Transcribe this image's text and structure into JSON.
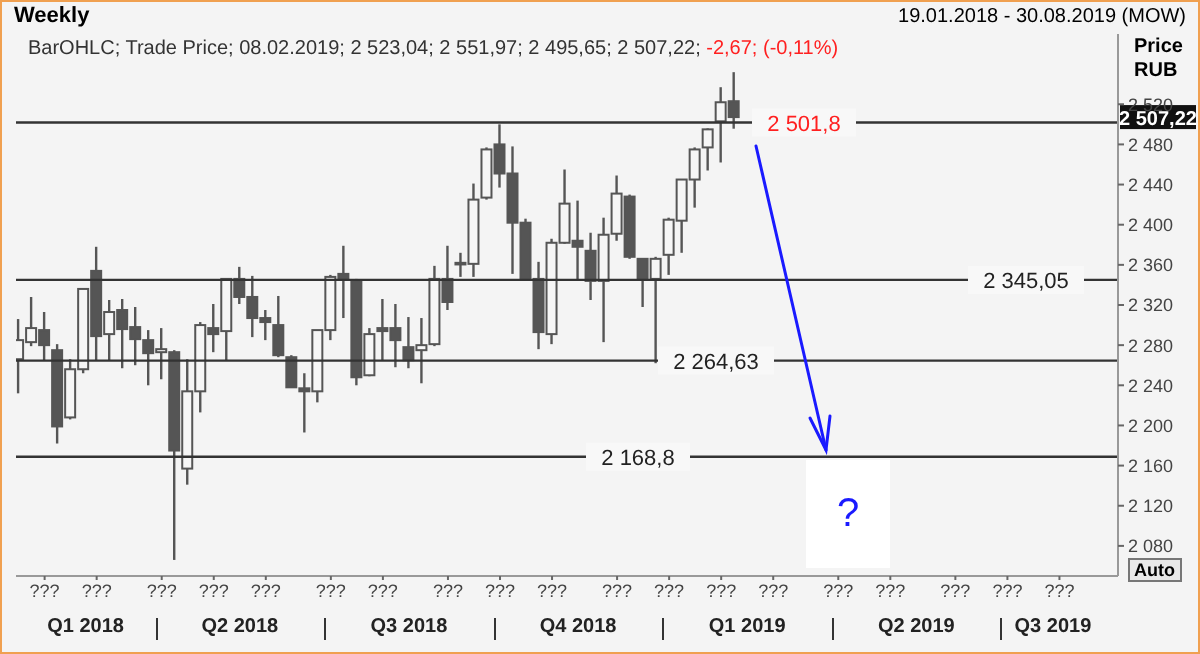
{
  "chart_data": {
    "type": "candlestick",
    "title": "Weekly",
    "subtitle": "19.01.2018 - 30.08.2019 (MOW)",
    "ylabel": "Price RUB",
    "annotations": [
      "BarOHLC; Trade Price; 08.02.2019; 2 523,04; 2 551,97; 2 495,65; 2 507,22;",
      "-2,67; (-0,11%)",
      "?",
      "Auto",
      {
        "text": "2 507,22",
        "y": 2507.22
      },
      "Q1 2018",
      "Q2 2018",
      "Q3 2018",
      "Q4 2018",
      "Q1 2019",
      "Q2 2019",
      "Q3 2019"
    ],
    "categories": [
      null,
      null,
      "???",
      null,
      null,
      null,
      "???",
      null,
      null,
      null,
      null,
      "???",
      null,
      null,
      null,
      "???",
      null,
      null,
      null,
      "???",
      null,
      null,
      null,
      null,
      "???",
      null,
      null,
      null,
      "???",
      null,
      null,
      null,
      null,
      "???",
      null,
      null,
      null,
      "???",
      null,
      null,
      null,
      "???",
      null,
      null,
      null,
      null,
      "???",
      null,
      null,
      null,
      "???",
      null,
      null,
      null,
      "???",
      null,
      null,
      null,
      "???",
      null,
      null,
      null,
      null,
      "???",
      null,
      null,
      null,
      "???",
      null,
      null,
      null,
      null,
      "???",
      null,
      null,
      null,
      "???",
      null,
      null,
      null,
      "???",
      null,
      null,
      null
    ],
    "ohlc": [
      [
        2266,
        2306,
        2232,
        2285
      ],
      [
        2283,
        2328,
        2279,
        2297
      ],
      [
        2295,
        2313,
        2265,
        2280
      ],
      [
        2275,
        2281,
        2182,
        2199
      ],
      [
        2208,
        2266,
        2206,
        2256
      ],
      [
        2256,
        2336,
        2252,
        2336
      ],
      [
        2354,
        2378,
        2265,
        2289
      ],
      [
        2291,
        2325,
        2265,
        2313
      ],
      [
        2315,
        2326,
        2257,
        2296
      ],
      [
        2298,
        2318,
        2260,
        2286
      ],
      [
        2285,
        2295,
        2240,
        2272
      ],
      [
        2273,
        2297,
        2246,
        2276
      ],
      [
        2273,
        2275,
        2066,
        2175
      ],
      [
        2157,
        2266,
        2141,
        2234
      ],
      [
        2234,
        2303,
        2213,
        2300
      ],
      [
        2297,
        2321,
        2273,
        2291
      ],
      [
        2294,
        2346,
        2265,
        2346
      ],
      [
        2346,
        2358,
        2321,
        2328
      ],
      [
        2328,
        2349,
        2288,
        2307
      ],
      [
        2307,
        2315,
        2285,
        2303
      ],
      [
        2300,
        2329,
        2268,
        2270
      ],
      [
        2268,
        2270,
        2238,
        2238
      ],
      [
        2237,
        2252,
        2193,
        2234
      ],
      [
        2234,
        2295,
        2223,
        2295
      ],
      [
        2295,
        2350,
        2285,
        2348
      ],
      [
        2351,
        2379,
        2307,
        2346
      ],
      [
        2344,
        2346,
        2240,
        2248
      ],
      [
        2250,
        2297,
        2249,
        2291
      ],
      [
        2297,
        2326,
        2265,
        2294
      ],
      [
        2297,
        2321,
        2258,
        2285
      ],
      [
        2278,
        2308,
        2257,
        2265
      ],
      [
        2275,
        2307,
        2242,
        2280
      ],
      [
        2281,
        2359,
        2279,
        2346
      ],
      [
        2346,
        2379,
        2315,
        2323
      ],
      [
        2361,
        2372,
        2348,
        2362
      ],
      [
        2361,
        2441,
        2348,
        2425
      ],
      [
        2427,
        2477,
        2425,
        2475
      ],
      [
        2480,
        2500,
        2437,
        2451
      ],
      [
        2451,
        2478,
        2351,
        2402
      ],
      [
        2402,
        2406,
        2344,
        2346
      ],
      [
        2346,
        2363,
        2276,
        2293
      ],
      [
        2291,
        2386,
        2281,
        2382
      ],
      [
        2382,
        2455,
        2381,
        2421
      ],
      [
        2384,
        2424,
        2344,
        2378
      ],
      [
        2374,
        2392,
        2325,
        2344
      ],
      [
        2344,
        2407,
        2283,
        2390
      ],
      [
        2391,
        2449,
        2384,
        2431
      ],
      [
        2428,
        2430,
        2366,
        2368
      ],
      [
        2366,
        2366,
        2318,
        2346
      ],
      [
        2346,
        2368,
        2262,
        2366
      ],
      [
        2370,
        2407,
        2350,
        2405
      ],
      [
        2404,
        2445,
        2372,
        2445
      ],
      [
        2445,
        2477,
        2417,
        2475
      ],
      [
        2477,
        2496,
        2454,
        2495
      ],
      [
        2503,
        2537,
        2462,
        2522
      ],
      [
        2523.04,
        2551.97,
        2495.65,
        2507.22
      ],
      null,
      null,
      null,
      null,
      null,
      null,
      null,
      null,
      null,
      null,
      null,
      null,
      null,
      null,
      null,
      null,
      null,
      null,
      null,
      null,
      null,
      null,
      null,
      null,
      null,
      null,
      null,
      null
    ],
    "ylim": [
      2050,
      2590
    ],
    "yticks": [
      {
        "value": 2080,
        "label": "2 080"
      },
      {
        "value": 2120,
        "label": "2 120"
      },
      {
        "value": 2160,
        "label": "2 160"
      },
      {
        "value": 2200,
        "label": "2 200"
      },
      {
        "value": 2240,
        "label": "2 240"
      },
      {
        "value": 2280,
        "label": "2 280"
      },
      {
        "value": 2320,
        "label": "2 320"
      },
      {
        "value": 2360,
        "label": "2 360"
      },
      {
        "value": 2400,
        "label": "2 400"
      },
      {
        "value": 2440,
        "label": "2 440"
      },
      {
        "value": 2480,
        "label": "2 480"
      },
      {
        "value": 2520,
        "label": "2 520"
      }
    ],
    "ref_lines": [
      {
        "axis": "y",
        "value": 2501.8,
        "label": "2 501,8"
      },
      {
        "axis": "y",
        "value": 2345.05,
        "label": "2 345,05"
      },
      {
        "axis": "y",
        "value": 2264.63,
        "label": "2 264,63"
      },
      {
        "axis": "y",
        "value": 2168.8,
        "label": "2 168,8"
      }
    ],
    "color": "#555555"
  }
}
